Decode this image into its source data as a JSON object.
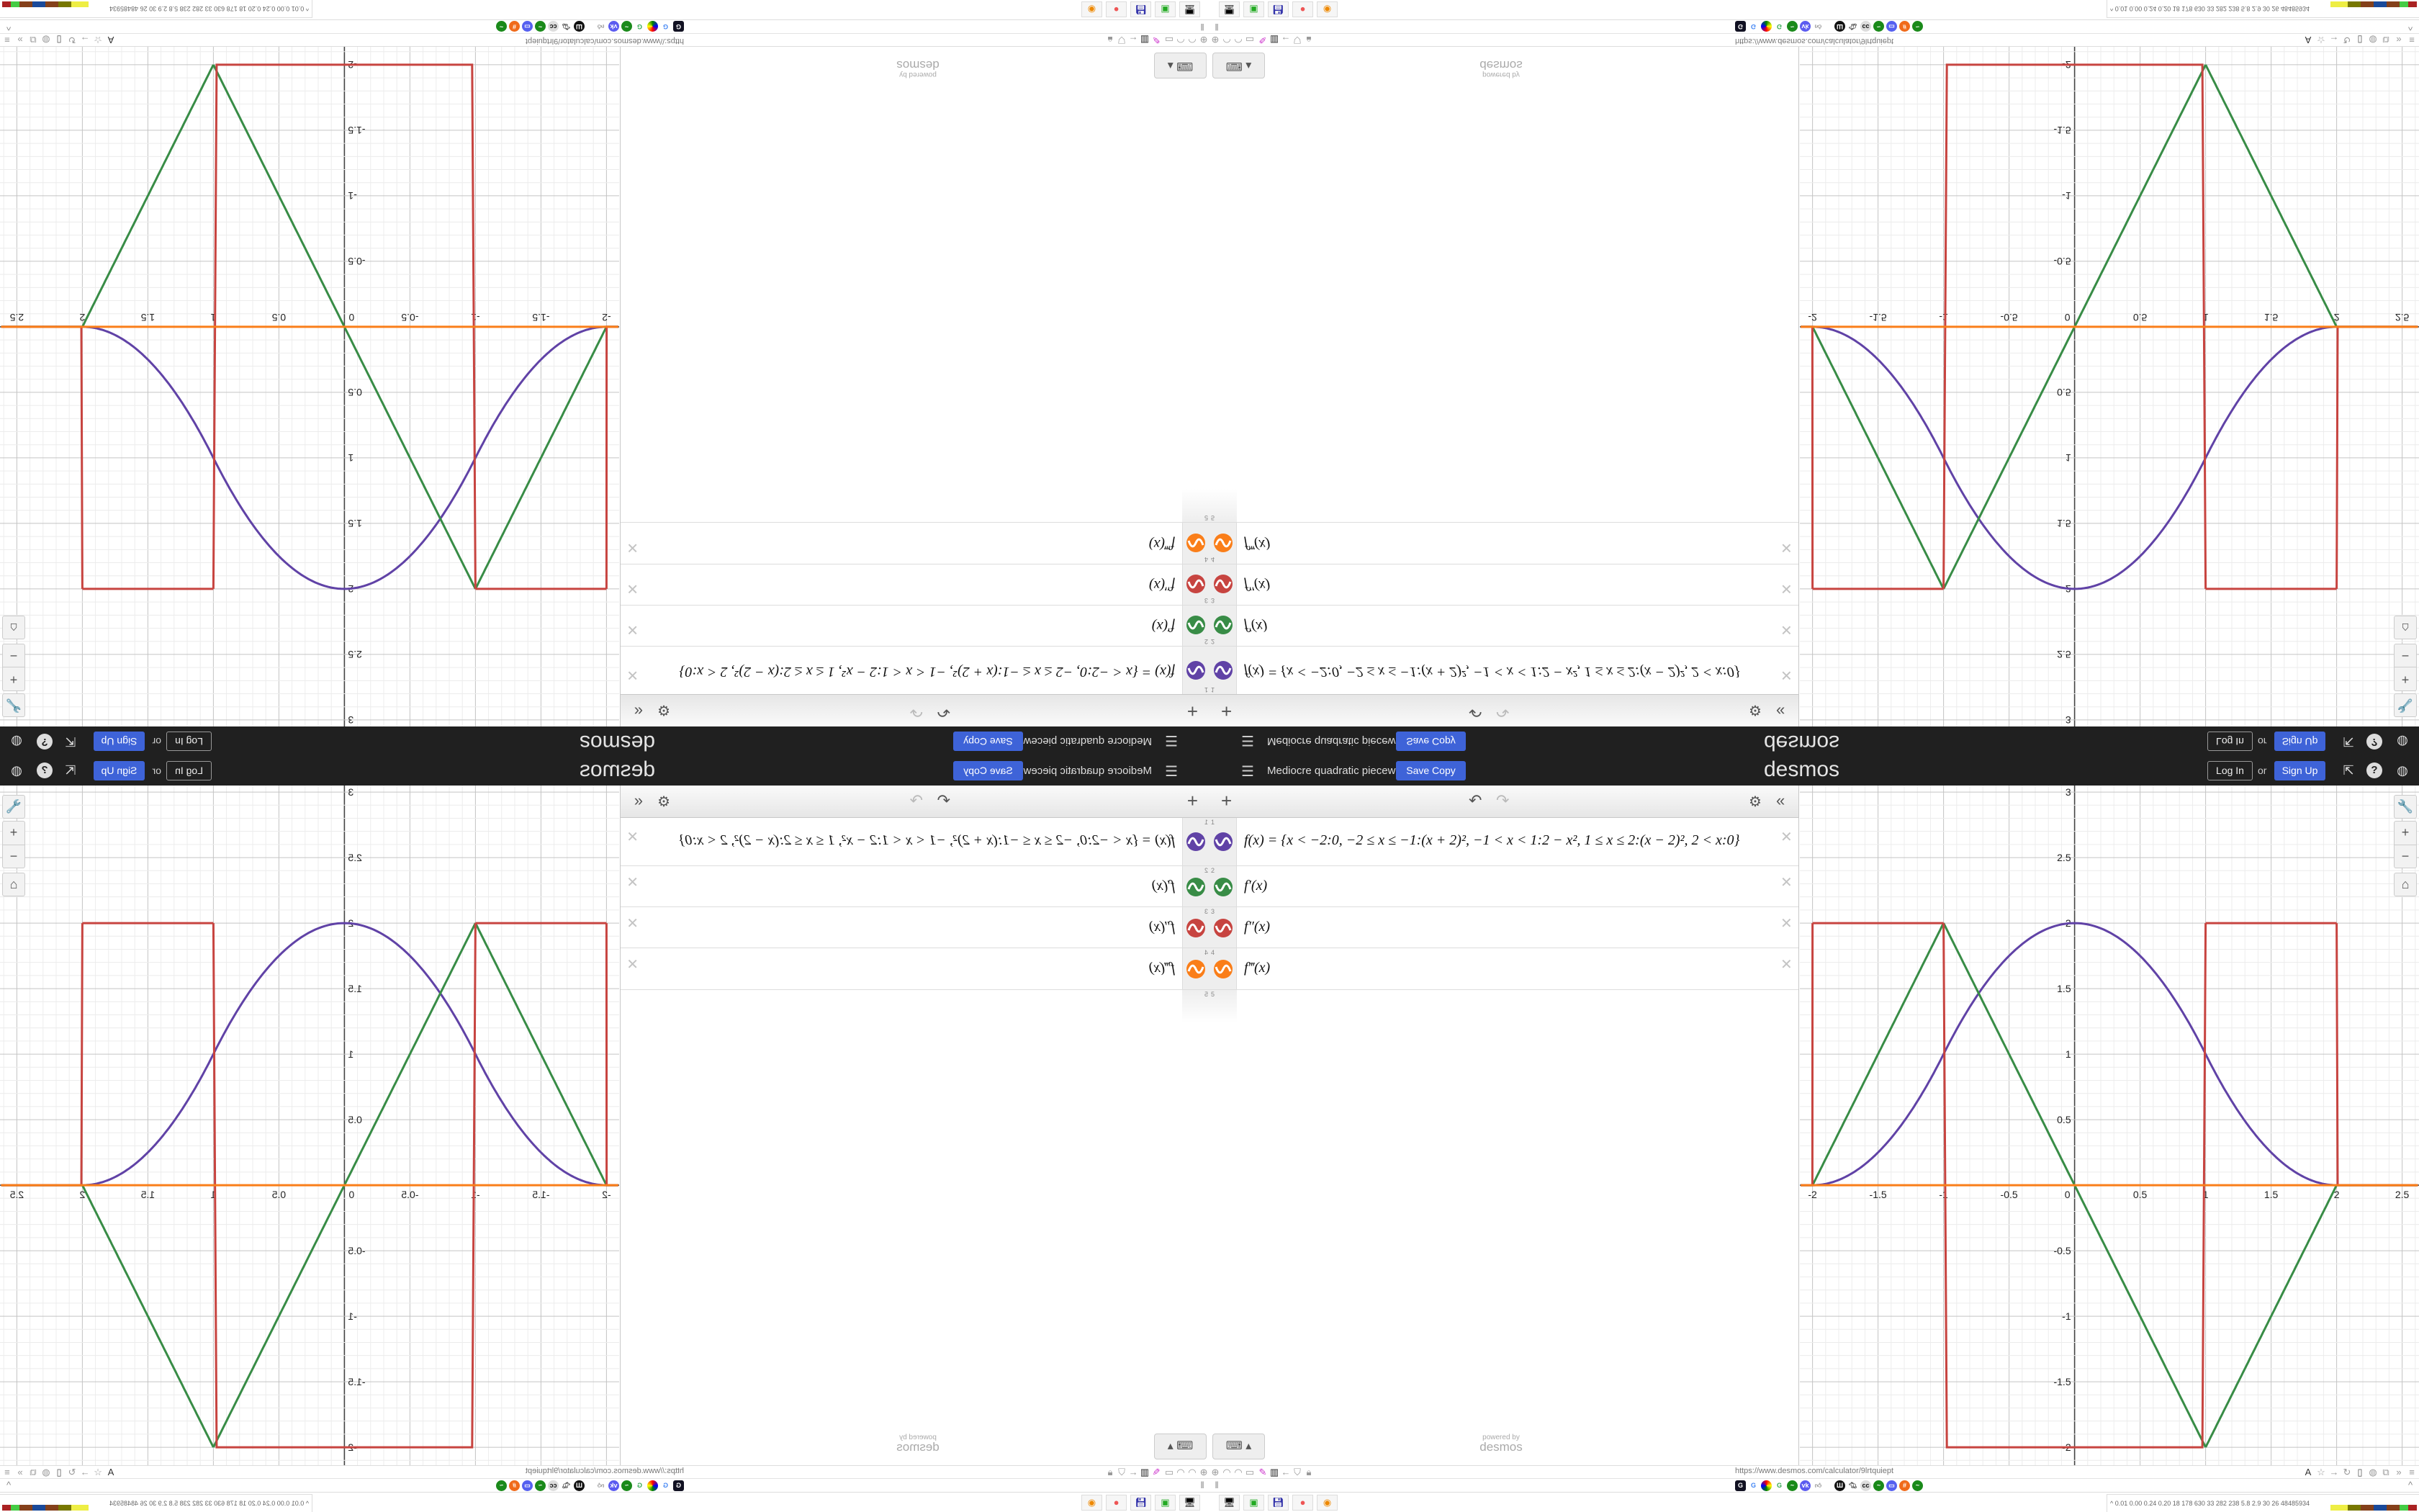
{
  "header": {
    "title": "Mediocre quadratic piecewi...",
    "save_copy": "Save Copy",
    "logo": "desmos",
    "log_in": "Log In",
    "or": "or",
    "sign_up": "Sign Up",
    "icons": [
      "share-icon",
      "help-icon",
      "globe-icon"
    ]
  },
  "toolbar": {
    "add": "+",
    "undo": "↶",
    "redo": "↷",
    "settings": "⚙",
    "collapse": "«"
  },
  "expressions": [
    {
      "index": "1",
      "latex": "f(x) = {x < −2:0, −2 ≤ x ≤ −1:(x + 2)², −1 < x < 1:2 − x², 1 ≤ x ≤ 2:(x − 2)², 2 < x:0}",
      "color": "#6042a6"
    },
    {
      "index": "2",
      "latex": "f′(x)",
      "color": "#388c46"
    },
    {
      "index": "3",
      "latex": "f″(x)",
      "color": "#c74440"
    },
    {
      "index": "4",
      "latex": "f‴(x)",
      "color": "#fa7e19"
    },
    {
      "index": "5",
      "latex": "",
      "color": ""
    }
  ],
  "powered_by": {
    "line1": "powered by",
    "line2": "desmos"
  },
  "keyboard_button": "⌨ ▴",
  "graph": {
    "x_ticks": [
      "-2",
      "-1.5",
      "-1",
      "-0.5",
      "0",
      "0.5",
      "1",
      "1.5",
      "2",
      "2.5"
    ],
    "y_ticks": [
      "3",
      "2.5",
      "2",
      "1.5",
      "1",
      "0.5",
      "-0.5",
      "-1",
      "-1.5",
      "-2"
    ],
    "x_range": [
      -2.09,
      2.62
    ],
    "y_range": [
      -2.13,
      3.04
    ],
    "grid": true,
    "zoom_buttons": {
      "settings": "🔧",
      "zoom_in": "+",
      "zoom_out": "−",
      "home": "⌂"
    }
  },
  "browser": {
    "url": "https://www.desmos.com/calculator/9lrtquiept",
    "bookmarks_toggle": "‖",
    "collapse": "^",
    "stats": "^  0.01 0.00 0.24 0.20  18  178  630  33  282  238  5.8  2.9  30  26  48485934"
  },
  "colors": {
    "header_bg": "#202020",
    "accent": "#3e63d8",
    "purple": "#6042a6",
    "green": "#388c46",
    "red": "#c74440",
    "orange": "#fa7e19"
  }
}
